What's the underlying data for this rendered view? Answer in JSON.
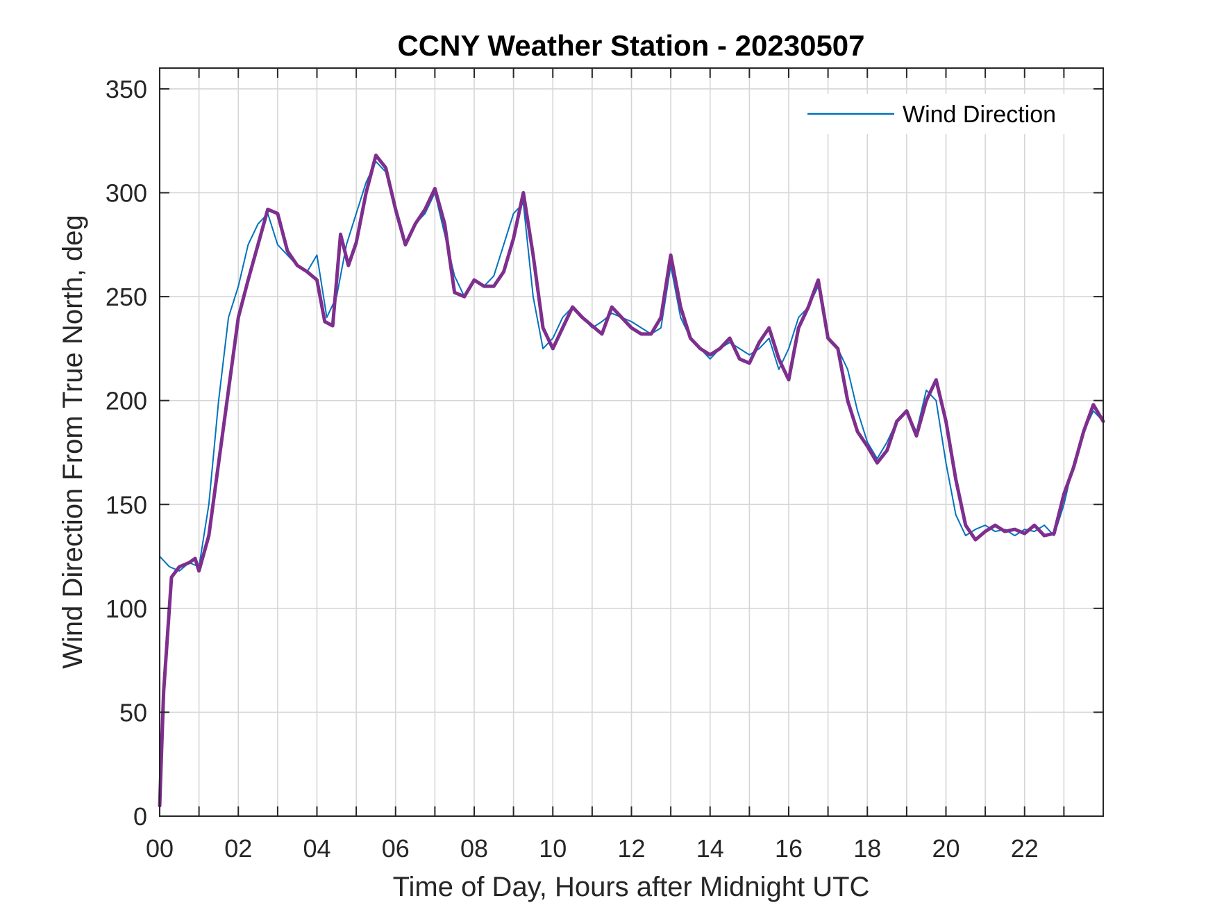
{
  "chart_data": {
    "type": "line",
    "title": "CCNY Weather Station - 20230507",
    "xlabel": "Time of Day, Hours after Midnight UTC",
    "ylabel": "Wind Direction From True North, deg",
    "xlim": [
      0,
      24
    ],
    "ylim": [
      0,
      360
    ],
    "xticks": [
      0,
      2,
      4,
      6,
      8,
      10,
      12,
      14,
      16,
      18,
      20,
      22
    ],
    "xticklabels": [
      "00",
      "02",
      "04",
      "06",
      "08",
      "10",
      "12",
      "14",
      "16",
      "18",
      "20",
      "22"
    ],
    "yticks": [
      0,
      50,
      100,
      150,
      200,
      250,
      300,
      350
    ],
    "yticklabels": [
      "0",
      "50",
      "100",
      "150",
      "200",
      "250",
      "300",
      "350"
    ],
    "grid": true,
    "legend": {
      "position": "top-right",
      "entries": [
        "Wind Direction"
      ]
    },
    "colors": {
      "raw": "#0072BD",
      "smoothed": "#7E2F8E"
    },
    "series": [
      {
        "name": "Wind Direction",
        "style": "thin-line",
        "color": "#0072BD",
        "x": [
          0.0,
          0.25,
          0.5,
          0.75,
          1.0,
          1.25,
          1.5,
          1.75,
          2.0,
          2.25,
          2.5,
          2.75,
          3.0,
          3.25,
          3.5,
          3.75,
          4.0,
          4.25,
          4.5,
          4.75,
          5.0,
          5.25,
          5.5,
          5.75,
          6.0,
          6.25,
          6.5,
          6.75,
          7.0,
          7.25,
          7.5,
          7.75,
          8.0,
          8.25,
          8.5,
          8.75,
          9.0,
          9.25,
          9.5,
          9.75,
          10.0,
          10.25,
          10.5,
          10.75,
          11.0,
          11.25,
          11.5,
          11.75,
          12.0,
          12.25,
          12.5,
          12.75,
          13.0,
          13.25,
          13.5,
          13.75,
          14.0,
          14.25,
          14.5,
          14.75,
          15.0,
          15.25,
          15.5,
          15.75,
          16.0,
          16.25,
          16.5,
          16.75,
          17.0,
          17.25,
          17.5,
          17.75,
          18.0,
          18.25,
          18.5,
          18.75,
          19.0,
          19.25,
          19.5,
          19.75,
          20.0,
          20.25,
          20.5,
          20.75,
          21.0,
          21.25,
          21.5,
          21.75,
          22.0,
          22.25,
          22.5,
          22.75,
          23.0,
          23.25,
          23.5,
          23.75,
          24.0
        ],
        "y": [
          125,
          120,
          118,
          122,
          120,
          150,
          200,
          240,
          255,
          275,
          285,
          290,
          275,
          270,
          265,
          262,
          270,
          240,
          250,
          275,
          290,
          305,
          315,
          310,
          290,
          275,
          285,
          290,
          300,
          280,
          260,
          250,
          258,
          255,
          260,
          275,
          290,
          295,
          250,
          225,
          230,
          240,
          245,
          240,
          235,
          238,
          242,
          240,
          238,
          235,
          232,
          235,
          265,
          240,
          230,
          225,
          220,
          225,
          228,
          225,
          222,
          225,
          230,
          215,
          225,
          240,
          245,
          255,
          230,
          225,
          215,
          195,
          180,
          172,
          180,
          190,
          195,
          185,
          205,
          200,
          170,
          145,
          135,
          138,
          140,
          137,
          138,
          135,
          138,
          137,
          140,
          135,
          150,
          170,
          185,
          195,
          190
        ]
      },
      {
        "name": "",
        "style": "thick-smoothed-line",
        "color": "#7E2F8E",
        "x": [
          0.0,
          0.1,
          0.3,
          0.5,
          0.75,
          0.9,
          1.0,
          1.25,
          1.5,
          1.75,
          2.0,
          2.25,
          2.5,
          2.75,
          3.0,
          3.25,
          3.5,
          3.75,
          4.0,
          4.2,
          4.4,
          4.6,
          4.8,
          5.0,
          5.25,
          5.5,
          5.75,
          6.0,
          6.25,
          6.5,
          6.75,
          7.0,
          7.25,
          7.5,
          7.75,
          8.0,
          8.25,
          8.5,
          8.75,
          9.0,
          9.25,
          9.5,
          9.75,
          10.0,
          10.25,
          10.5,
          10.75,
          11.0,
          11.25,
          11.5,
          11.75,
          12.0,
          12.25,
          12.5,
          12.75,
          13.0,
          13.25,
          13.5,
          13.75,
          14.0,
          14.25,
          14.5,
          14.75,
          15.0,
          15.25,
          15.5,
          15.75,
          16.0,
          16.25,
          16.5,
          16.75,
          17.0,
          17.25,
          17.5,
          17.75,
          18.0,
          18.25,
          18.5,
          18.75,
          19.0,
          19.25,
          19.5,
          19.75,
          20.0,
          20.25,
          20.5,
          20.75,
          21.0,
          21.25,
          21.5,
          21.75,
          22.0,
          22.25,
          22.5,
          22.75,
          23.0,
          23.25,
          23.5,
          23.75,
          24.0
        ],
        "y": [
          5,
          60,
          115,
          120,
          122,
          124,
          118,
          135,
          170,
          205,
          240,
          258,
          275,
          292,
          290,
          272,
          265,
          262,
          258,
          238,
          236,
          280,
          265,
          276,
          300,
          318,
          312,
          292,
          275,
          285,
          292,
          302,
          285,
          252,
          250,
          258,
          255,
          255,
          262,
          278,
          300,
          270,
          235,
          225,
          235,
          245,
          240,
          236,
          232,
          245,
          240,
          235,
          232,
          232,
          240,
          270,
          245,
          230,
          225,
          222,
          225,
          230,
          220,
          218,
          228,
          235,
          220,
          210,
          235,
          245,
          258,
          230,
          225,
          200,
          185,
          178,
          170,
          176,
          190,
          195,
          183,
          200,
          210,
          190,
          162,
          140,
          133,
          137,
          140,
          137,
          138,
          136,
          140,
          135,
          136,
          155,
          168,
          185,
          198,
          190
        ]
      }
    ]
  }
}
